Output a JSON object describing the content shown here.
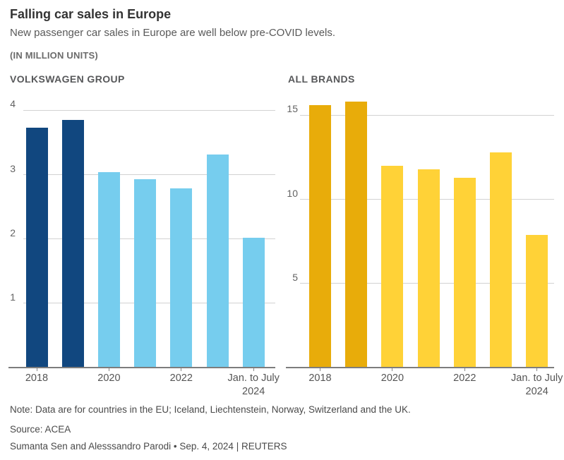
{
  "header": {
    "title": "Falling car sales in Europe",
    "subtitle": "New passenger car sales in Europe are well below pre-COVID levels.",
    "units_label": "(IN MILLION UNITS)"
  },
  "chart_data": [
    {
      "type": "bar",
      "title": "VOLKSWAGEN GROUP",
      "categories": [
        "2018",
        "2019",
        "2020",
        "2021",
        "2022",
        "2023",
        "Jan. to July 2024"
      ],
      "values": [
        3.73,
        3.85,
        3.04,
        2.93,
        2.79,
        3.31,
        2.02
      ],
      "ylim": [
        0,
        4.29
      ],
      "yticks": [
        1,
        2,
        3,
        4
      ],
      "xticks": [
        {
          "bar_index": 0,
          "label": "2018"
        },
        {
          "bar_index": 2,
          "label": "2020"
        },
        {
          "bar_index": 4,
          "label": "2022"
        },
        {
          "bar_index": 6,
          "label": "Jan. to July\n2024"
        }
      ],
      "highlight_bars": [
        0,
        1
      ],
      "highlight_color": "#11477F",
      "bar_color": "#76CDEE",
      "grid": true,
      "legend": "none"
    },
    {
      "type": "bar",
      "title": "ALL BRANDS",
      "categories": [
        "2018",
        "2019",
        "2020",
        "2021",
        "2022",
        "2023",
        "Jan. to July 2024"
      ],
      "values": [
        15.6,
        15.8,
        12.0,
        11.8,
        11.3,
        12.8,
        7.9
      ],
      "ylim": [
        0,
        16.4
      ],
      "yticks": [
        5,
        10,
        15
      ],
      "xticks": [
        {
          "bar_index": 0,
          "label": "2018"
        },
        {
          "bar_index": 2,
          "label": "2020"
        },
        {
          "bar_index": 4,
          "label": "2022"
        },
        {
          "bar_index": 6,
          "label": "Jan. to July\n2024"
        }
      ],
      "highlight_bars": [
        0,
        1
      ],
      "highlight_color": "#E8AC0A",
      "bar_color": "#FFD237",
      "grid": true,
      "legend": "none"
    }
  ],
  "footer": {
    "note": "Note: Data are for countries in the EU; Iceland, Liechtenstein, Norway, Switzerland and the UK.",
    "source": "Source: ACEA",
    "byline": "Sumanta Sen and Alesssandro Parodi • Sep. 4, 2024 | REUTERS"
  }
}
